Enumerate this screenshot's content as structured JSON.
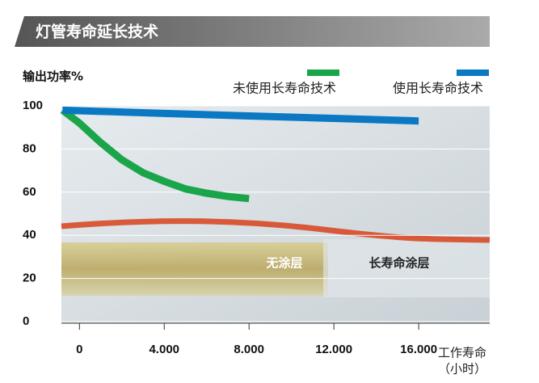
{
  "chart_data": {
    "type": "line",
    "title": "灯管寿命延长技术",
    "y_label": "输出功率%",
    "x_label": [
      "工作寿命",
      "（小时）"
    ],
    "annotations": [
      "无涂层",
      "长寿命涂层"
    ],
    "series": [
      {
        "name": "未使用长寿命技术",
        "color": "#1aa54a",
        "x": [
          -800,
          0,
          1000,
          2000,
          3000,
          4000,
          5000,
          6000,
          7000,
          8000
        ],
        "values": [
          98,
          92,
          83,
          75,
          69,
          65,
          61.5,
          59.5,
          58,
          57
        ]
      },
      {
        "name": "使用长寿命技术",
        "color": "#0a78c2",
        "x": [
          -800,
          4000,
          8000,
          12000,
          16000
        ],
        "values": [
          98,
          96.5,
          95.3,
          94.2,
          93
        ]
      }
    ],
    "xlim": [
      -850,
      19350
    ],
    "ylim": [
      0,
      100
    ],
    "xticks": [
      0,
      {
        "value": 4000,
        "label": "4.000"
      },
      {
        "value": 8000,
        "label": "8.000"
      },
      {
        "value": 12000,
        "label": "12.000"
      },
      {
        "value": 16000,
        "label": "16.000"
      }
    ],
    "yticks": [
      0,
      20,
      40,
      60,
      80,
      100
    ],
    "grid": true
  }
}
